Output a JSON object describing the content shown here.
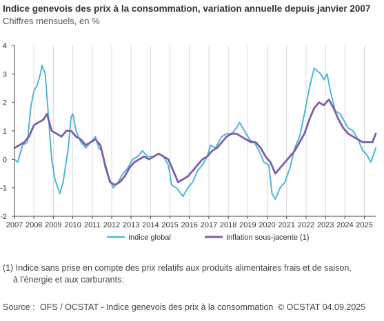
{
  "title": "Indice genevois des prix à la consommation, variation annuelle depuis janvier 2007",
  "subtitle": "Chiffres mensuels, en %",
  "footnote": {
    "line1": "(1) Indice sans prise en compte des prix relatifs aux produits alimentaires frais et de saison,",
    "line2": "à l'énergie et aux carburants."
  },
  "source": {
    "label": "Source :",
    "text": "OFS / OCSTAT - Indice genevois des prix à la consommation",
    "copyright": "© OCSTAT 04.09.2025"
  },
  "colors": {
    "indice_global": "#4DB6D8",
    "inflation_sous_jacente": "#7B5EA7",
    "grid": "#D9D9D9",
    "axis": "#444444"
  },
  "chart_data": {
    "type": "line",
    "x_start": "2007-01",
    "x_end": "2025-08",
    "frequency": "monthly",
    "ylim": [
      -2,
      4
    ],
    "yticks": [
      "-2",
      "-1",
      "0",
      "1",
      "2",
      "3",
      "4"
    ],
    "xticks": [
      "2007",
      "2008",
      "2009",
      "2010",
      "2011",
      "2012",
      "2013",
      "2014",
      "2015",
      "2016",
      "2017",
      "2018",
      "2019",
      "2020",
      "2021",
      "2022",
      "2023",
      "2024",
      "2025"
    ],
    "grid": "vertical",
    "legend_position": "bottom",
    "series": [
      {
        "name": "Indice global",
        "color_key": "indice_global",
        "anchors": [
          [
            "2007-01",
            0.0
          ],
          [
            "2007-03",
            -0.1
          ],
          [
            "2007-06",
            0.5
          ],
          [
            "2007-09",
            0.6
          ],
          [
            "2007-11",
            1.8
          ],
          [
            "2008-01",
            2.4
          ],
          [
            "2008-03",
            2.6
          ],
          [
            "2008-05",
            3.0
          ],
          [
            "2008-06",
            3.3
          ],
          [
            "2008-08",
            3.0
          ],
          [
            "2008-10",
            1.5
          ],
          [
            "2008-12",
            0.0
          ],
          [
            "2009-02",
            -0.7
          ],
          [
            "2009-05",
            -1.2
          ],
          [
            "2009-07",
            -0.8
          ],
          [
            "2009-10",
            0.3
          ],
          [
            "2009-12",
            1.5
          ],
          [
            "2010-01",
            1.6
          ],
          [
            "2010-03",
            1.0
          ],
          [
            "2010-06",
            0.6
          ],
          [
            "2010-09",
            0.4
          ],
          [
            "2010-12",
            0.6
          ],
          [
            "2011-03",
            0.8
          ],
          [
            "2011-05",
            0.4
          ],
          [
            "2011-07",
            0.3
          ],
          [
            "2011-09",
            -0.3
          ],
          [
            "2011-11",
            -0.6
          ],
          [
            "2012-02",
            -1.0
          ],
          [
            "2012-05",
            -0.8
          ],
          [
            "2012-08",
            -0.5
          ],
          [
            "2012-11",
            -0.3
          ],
          [
            "2013-02",
            0.0
          ],
          [
            "2013-05",
            0.1
          ],
          [
            "2013-08",
            0.3
          ],
          [
            "2013-11",
            0.1
          ],
          [
            "2014-03",
            0.1
          ],
          [
            "2014-06",
            0.2
          ],
          [
            "2014-09",
            0.1
          ],
          [
            "2014-12",
            -0.2
          ],
          [
            "2015-02",
            -0.9
          ],
          [
            "2015-05",
            -1.0
          ],
          [
            "2015-09",
            -1.3
          ],
          [
            "2015-12",
            -1.0
          ],
          [
            "2016-03",
            -0.8
          ],
          [
            "2016-06",
            -0.4
          ],
          [
            "2016-09",
            -0.2
          ],
          [
            "2016-12",
            0.1
          ],
          [
            "2017-02",
            0.5
          ],
          [
            "2017-05",
            0.4
          ],
          [
            "2017-09",
            0.8
          ],
          [
            "2017-12",
            0.9
          ],
          [
            "2018-03",
            0.9
          ],
          [
            "2018-06",
            1.1
          ],
          [
            "2018-08",
            1.3
          ],
          [
            "2018-11",
            1.0
          ],
          [
            "2019-02",
            0.7
          ],
          [
            "2019-05",
            0.6
          ],
          [
            "2019-08",
            0.3
          ],
          [
            "2019-11",
            -0.1
          ],
          [
            "2020-02",
            -0.2
          ],
          [
            "2020-04",
            -1.2
          ],
          [
            "2020-06",
            -1.4
          ],
          [
            "2020-09",
            -1.0
          ],
          [
            "2020-12",
            -0.8
          ],
          [
            "2021-03",
            -0.3
          ],
          [
            "2021-06",
            0.4
          ],
          [
            "2021-09",
            0.8
          ],
          [
            "2021-12",
            1.6
          ],
          [
            "2022-03",
            2.5
          ],
          [
            "2022-06",
            3.2
          ],
          [
            "2022-08",
            3.1
          ],
          [
            "2022-10",
            3.0
          ],
          [
            "2022-12",
            2.8
          ],
          [
            "2023-02",
            3.0
          ],
          [
            "2023-04",
            2.4
          ],
          [
            "2023-07",
            1.7
          ],
          [
            "2023-10",
            1.6
          ],
          [
            "2023-12",
            1.4
          ],
          [
            "2024-03",
            1.1
          ],
          [
            "2024-06",
            1.0
          ],
          [
            "2024-09",
            0.7
          ],
          [
            "2024-12",
            0.3
          ],
          [
            "2025-02",
            0.2
          ],
          [
            "2025-05",
            -0.1
          ],
          [
            "2025-08",
            0.4
          ]
        ]
      },
      {
        "name": "Inflation sous-jacente (1)",
        "color_key": "inflation_sous_jacente",
        "anchors": [
          [
            "2007-01",
            0.4
          ],
          [
            "2007-04",
            0.5
          ],
          [
            "2007-07",
            0.6
          ],
          [
            "2007-10",
            0.8
          ],
          [
            "2008-01",
            1.2
          ],
          [
            "2008-04",
            1.3
          ],
          [
            "2008-07",
            1.4
          ],
          [
            "2008-09",
            1.6
          ],
          [
            "2008-12",
            1.0
          ],
          [
            "2009-03",
            0.9
          ],
          [
            "2009-06",
            0.8
          ],
          [
            "2009-09",
            1.0
          ],
          [
            "2009-12",
            1.0
          ],
          [
            "2010-03",
            0.8
          ],
          [
            "2010-06",
            0.7
          ],
          [
            "2010-09",
            0.5
          ],
          [
            "2010-12",
            0.6
          ],
          [
            "2011-03",
            0.7
          ],
          [
            "2011-06",
            0.5
          ],
          [
            "2011-09",
            -0.2
          ],
          [
            "2011-12",
            -0.8
          ],
          [
            "2012-03",
            -0.9
          ],
          [
            "2012-06",
            -0.8
          ],
          [
            "2012-09",
            -0.6
          ],
          [
            "2012-12",
            -0.3
          ],
          [
            "2013-03",
            -0.1
          ],
          [
            "2013-06",
            0.0
          ],
          [
            "2013-09",
            0.1
          ],
          [
            "2013-12",
            0.0
          ],
          [
            "2014-03",
            0.1
          ],
          [
            "2014-06",
            0.2
          ],
          [
            "2014-09",
            0.1
          ],
          [
            "2014-12",
            0.0
          ],
          [
            "2015-03",
            -0.4
          ],
          [
            "2015-06",
            -0.8
          ],
          [
            "2015-09",
            -0.7
          ],
          [
            "2015-12",
            -0.6
          ],
          [
            "2016-03",
            -0.4
          ],
          [
            "2016-06",
            -0.2
          ],
          [
            "2016-09",
            0.0
          ],
          [
            "2016-12",
            0.1
          ],
          [
            "2017-03",
            0.3
          ],
          [
            "2017-06",
            0.4
          ],
          [
            "2017-09",
            0.6
          ],
          [
            "2017-12",
            0.8
          ],
          [
            "2018-03",
            0.9
          ],
          [
            "2018-06",
            0.9
          ],
          [
            "2018-09",
            0.8
          ],
          [
            "2018-12",
            0.7
          ],
          [
            "2019-03",
            0.6
          ],
          [
            "2019-06",
            0.6
          ],
          [
            "2019-09",
            0.4
          ],
          [
            "2019-12",
            0.1
          ],
          [
            "2020-03",
            -0.1
          ],
          [
            "2020-06",
            -0.5
          ],
          [
            "2020-09",
            -0.3
          ],
          [
            "2020-12",
            -0.1
          ],
          [
            "2021-03",
            0.1
          ],
          [
            "2021-06",
            0.3
          ],
          [
            "2021-09",
            0.6
          ],
          [
            "2021-12",
            0.9
          ],
          [
            "2022-03",
            1.4
          ],
          [
            "2022-06",
            1.8
          ],
          [
            "2022-09",
            2.0
          ],
          [
            "2022-12",
            1.9
          ],
          [
            "2023-03",
            2.1
          ],
          [
            "2023-06",
            1.8
          ],
          [
            "2023-09",
            1.4
          ],
          [
            "2023-12",
            1.1
          ],
          [
            "2024-03",
            0.9
          ],
          [
            "2024-06",
            0.8
          ],
          [
            "2024-09",
            0.7
          ],
          [
            "2024-12",
            0.6
          ],
          [
            "2025-03",
            0.6
          ],
          [
            "2025-06",
            0.6
          ],
          [
            "2025-08",
            0.9
          ]
        ]
      }
    ]
  }
}
